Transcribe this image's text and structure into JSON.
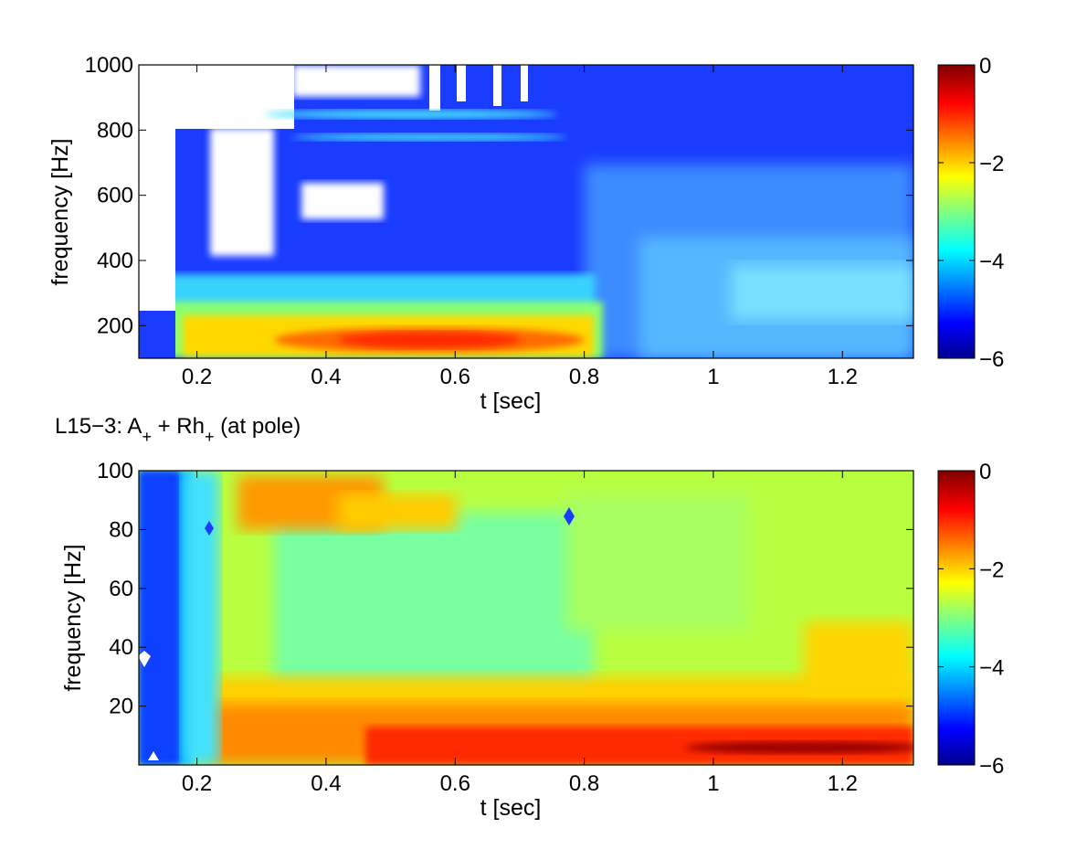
{
  "colors": {
    "colormap": [
      "#00008f",
      "#0000ff",
      "#0080ff",
      "#00ffff",
      "#80ff80",
      "#ffff00",
      "#ff8000",
      "#ff0000",
      "#800000"
    ],
    "background": "#ffffff"
  },
  "chart_data": [
    {
      "type": "heatmap",
      "title": "",
      "xlabel": "t [sec]",
      "ylabel": "frequency [Hz]",
      "xlim": [
        0.11,
        1.31
      ],
      "ylim": [
        100,
        1000
      ],
      "xticks": [
        0.2,
        0.4,
        0.6,
        0.8,
        1,
        1.2
      ],
      "xtick_labels": [
        "0.2",
        "0.4",
        "0.6",
        "0.8",
        "1",
        "1.2"
      ],
      "yticks": [
        200,
        400,
        600,
        800,
        1000
      ],
      "ytick_labels": [
        "200",
        "400",
        "600",
        "800",
        "1000"
      ],
      "colorbar": {
        "range": [
          -6,
          0
        ],
        "ticks": [
          0,
          -2,
          -4,
          -6
        ],
        "tick_labels": [
          "0",
          "−2",
          "−4",
          "−6"
        ]
      },
      "description_values": {
        "low_band_peak": {
          "t": [
            0.3,
            0.75
          ],
          "f": [
            120,
            200
          ],
          "level": -0.8
        },
        "upper_region": {
          "t": [
            0.2,
            0.8
          ],
          "f": [
            300,
            1000
          ],
          "level": -5.8
        },
        "late_region": {
          "t": [
            0.8,
            1.3
          ],
          "f": [
            200,
            1000
          ],
          "level": -4.5
        }
      }
    },
    {
      "type": "heatmap",
      "title": "L15−3:  A+ + Rh+ (at pole)",
      "xlabel": "t [sec]",
      "ylabel": "frequency [Hz]",
      "xlim": [
        0.11,
        1.31
      ],
      "ylim": [
        0,
        100
      ],
      "xticks": [
        0.2,
        0.4,
        0.6,
        0.8,
        1,
        1.2
      ],
      "xtick_labels": [
        "0.2",
        "0.4",
        "0.6",
        "0.8",
        "1",
        "1.2"
      ],
      "yticks": [
        20,
        40,
        60,
        80,
        100
      ],
      "ytick_labels": [
        "20",
        "40",
        "60",
        "80",
        "100"
      ],
      "colorbar": {
        "range": [
          -6,
          0
        ],
        "ticks": [
          0,
          -2,
          -4,
          -6
        ],
        "tick_labels": [
          "0",
          "−2",
          "−4",
          "−6"
        ]
      },
      "description_values": {
        "early_low": {
          "t": [
            0.11,
            0.2
          ],
          "f": [
            0,
            100
          ],
          "level": -5.2
        },
        "low_freq_peak": {
          "t": [
            0.8,
            1.3
          ],
          "f": [
            0,
            10
          ],
          "level": -0.3
        },
        "mid_region": {
          "t": [
            0.3,
            1.3
          ],
          "f": [
            30,
            100
          ],
          "level": -2.8
        }
      }
    }
  ],
  "subtitle_parts": {
    "prefix": "L15−3:  A",
    "sub1": "+",
    "mid": " + Rh",
    "sub2": "+",
    "suffix": " (at pole)"
  }
}
